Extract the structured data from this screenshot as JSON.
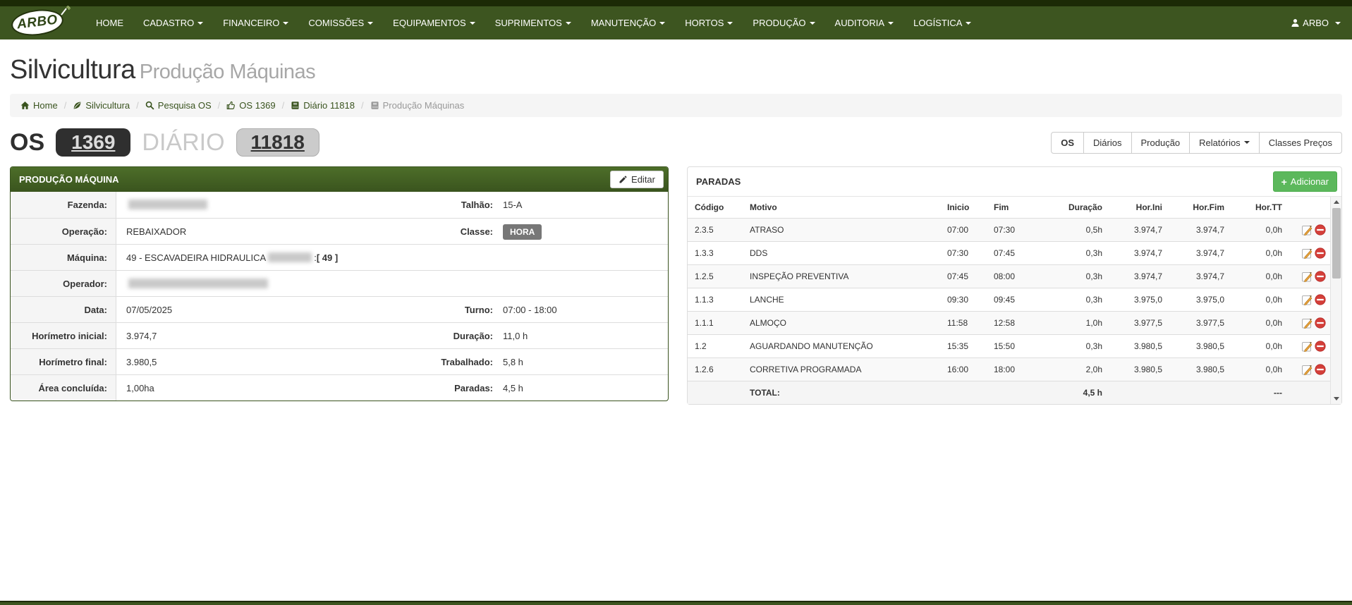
{
  "navbar": {
    "brand": "ARBO",
    "items": [
      {
        "label": "HOME",
        "caret": false
      },
      {
        "label": "CADASTRO",
        "caret": true
      },
      {
        "label": "FINANCEIRO",
        "caret": true
      },
      {
        "label": "COMISSÕES",
        "caret": true
      },
      {
        "label": "EQUIPAMENTOS",
        "caret": true
      },
      {
        "label": "SUPRIMENTOS",
        "caret": true
      },
      {
        "label": "MANUTENÇÃO",
        "caret": true
      },
      {
        "label": "HORTOS",
        "caret": true
      },
      {
        "label": "PRODUÇÃO",
        "caret": true
      },
      {
        "label": "AUDITORIA",
        "caret": true
      },
      {
        "label": "LOGÍSTICA",
        "caret": true
      }
    ],
    "user": "ARBO"
  },
  "page": {
    "title": "Silvicultura",
    "subtitle": "Produção Máquinas"
  },
  "breadcrumb": {
    "separator": "/",
    "items": [
      {
        "label": "Home",
        "icon": "home-icon",
        "current": false
      },
      {
        "label": "Silvicultura",
        "icon": "leaf-icon",
        "current": false
      },
      {
        "label": "Pesquisa OS",
        "icon": "search-icon",
        "current": false
      },
      {
        "label": "OS 1369",
        "icon": "thumbs-up-icon",
        "current": false
      },
      {
        "label": "Diário 11818",
        "icon": "book-icon",
        "current": false
      },
      {
        "label": "Produção Máquinas",
        "icon": "book-icon",
        "current": true
      }
    ]
  },
  "os_header": {
    "os_label": "OS",
    "os_number": "1369",
    "diario_label": "DIÁRIO",
    "diario_number": "11818"
  },
  "tabs": [
    {
      "label": "OS",
      "active": true,
      "caret": false
    },
    {
      "label": "Diários",
      "active": false,
      "caret": false
    },
    {
      "label": "Produção",
      "active": false,
      "caret": false
    },
    {
      "label": "Relatórios",
      "active": false,
      "caret": true
    },
    {
      "label": "Classes Preços",
      "active": false,
      "caret": false
    }
  ],
  "producao": {
    "panel_title": "PRODUÇÃO MÁQUINA",
    "edit_label": "Editar",
    "rows": [
      {
        "label": "Fazenda:",
        "value_parts": [
          {
            "redacted": 112
          }
        ],
        "label2": "Talhão:",
        "value2": "15-A"
      },
      {
        "label": "Operação:",
        "value_parts": [
          {
            "text": "REBAIXADOR"
          }
        ],
        "label2": "Classe:",
        "value2": "HORA",
        "value2_badge": true
      },
      {
        "label": "Máquina:",
        "value_parts": [
          {
            "text": "49 - ESCAVADEIRA HIDRAULICA "
          },
          {
            "redacted": 62
          },
          {
            "text": ": "
          },
          {
            "text": "[ 49 ]",
            "bold": true
          }
        ]
      },
      {
        "label": "Operador:",
        "value_parts": [
          {
            "redacted": 198
          }
        ]
      },
      {
        "label": "Data:",
        "value_parts": [
          {
            "text": "07/05/2025"
          }
        ],
        "label2": "Turno:",
        "value2": "07:00 - 18:00"
      },
      {
        "label": "Horímetro inicial:",
        "value_parts": [
          {
            "text": "3.974,7"
          }
        ],
        "label2": "Duração:",
        "value2": "11,0 h"
      },
      {
        "label": "Horímetro final:",
        "value_parts": [
          {
            "text": "3.980,5"
          }
        ],
        "label2": "Trabalhado:",
        "value2": "5,8 h"
      },
      {
        "label": "Área concluída:",
        "value_parts": [
          {
            "text": "1,00ha"
          }
        ],
        "label2": "Paradas:",
        "value2": "4,5 h"
      }
    ]
  },
  "paradas": {
    "panel_title": "PARADAS",
    "add_icon": "+",
    "add_label": "Adicionar",
    "headers": [
      "Código",
      "Motivo",
      "Inicio",
      "Fim",
      "Duração",
      "Hor.Ini",
      "Hor.Fim",
      "Hor.TT"
    ],
    "rows": [
      {
        "codigo": "2.3.5",
        "motivo": "ATRASO",
        "inicio": "07:00",
        "fim": "07:30",
        "duracao": "0,5h",
        "hor_ini": "3.974,7",
        "hor_fim": "3.974,7",
        "hor_tt": "0,0h"
      },
      {
        "codigo": "1.3.3",
        "motivo": "DDS",
        "inicio": "07:30",
        "fim": "07:45",
        "duracao": "0,3h",
        "hor_ini": "3.974,7",
        "hor_fim": "3.974,7",
        "hor_tt": "0,0h"
      },
      {
        "codigo": "1.2.5",
        "motivo": "INSPEÇÃO PREVENTIVA",
        "inicio": "07:45",
        "fim": "08:00",
        "duracao": "0,3h",
        "hor_ini": "3.974,7",
        "hor_fim": "3.974,7",
        "hor_tt": "0,0h"
      },
      {
        "codigo": "1.1.3",
        "motivo": "LANCHE",
        "inicio": "09:30",
        "fim": "09:45",
        "duracao": "0,3h",
        "hor_ini": "3.975,0",
        "hor_fim": "3.975,0",
        "hor_tt": "0,0h"
      },
      {
        "codigo": "1.1.1",
        "motivo": "ALMOÇO",
        "inicio": "11:58",
        "fim": "12:58",
        "duracao": "1,0h",
        "hor_ini": "3.977,5",
        "hor_fim": "3.977,5",
        "hor_tt": "0,0h"
      },
      {
        "codigo": "1.2",
        "motivo": "AGUARDANDO MANUTENÇÃO",
        "inicio": "15:35",
        "fim": "15:50",
        "duracao": "0,3h",
        "hor_ini": "3.980,5",
        "hor_fim": "3.980,5",
        "hor_tt": "0,0h"
      },
      {
        "codigo": "1.2.6",
        "motivo": "CORRETIVA PROGRAMADA",
        "inicio": "16:00",
        "fim": "18:00",
        "duracao": "2,0h",
        "hor_ini": "3.980,5",
        "hor_fim": "3.980,5",
        "hor_tt": "0,0h"
      }
    ],
    "total": {
      "label": "TOTAL:",
      "duracao": "4,5 h",
      "hor_tt": "---"
    }
  },
  "colors": {
    "navbar_green": "#3d5520",
    "panel_header_green_top": "#4d6e29",
    "panel_header_green_bottom": "#3a541e",
    "link_green": "#39531e",
    "add_button_green": "#5cb85c",
    "delete_red": "#d43f3a",
    "pencil_orange": "#e8a33d",
    "badge_gray": "#777777",
    "dark_badge": "#2f2f2f",
    "light_badge": "#cbcbcb"
  }
}
